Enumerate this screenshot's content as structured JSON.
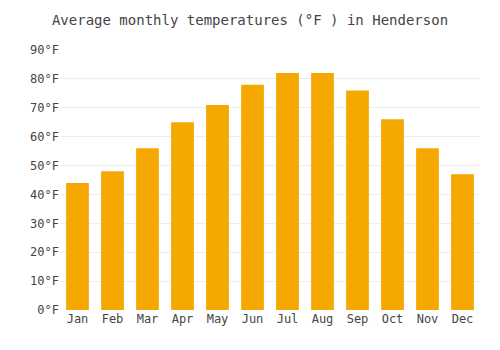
{
  "chart_data": {
    "type": "bar",
    "title": "Average monthly temperatures (°F ) in Henderson",
    "categories": [
      "Jan",
      "Feb",
      "Mar",
      "Apr",
      "May",
      "Jun",
      "Jul",
      "Aug",
      "Sep",
      "Oct",
      "Nov",
      "Dec"
    ],
    "values": [
      44,
      48,
      56,
      65,
      71,
      78,
      82,
      82,
      76,
      66,
      56,
      47
    ],
    "color": "#F5A800",
    "ylim": [
      0,
      90
    ],
    "yticks": [
      {
        "value": 0,
        "label": "0°F"
      },
      {
        "value": 10,
        "label": "10°F"
      },
      {
        "value": 20,
        "label": "20°F"
      },
      {
        "value": 30,
        "label": "30°F"
      },
      {
        "value": 40,
        "label": "40°F"
      },
      {
        "value": 50,
        "label": "50°F"
      },
      {
        "value": 60,
        "label": "60°F"
      },
      {
        "value": 70,
        "label": "70°F"
      },
      {
        "value": 80,
        "label": "80°F"
      },
      {
        "value": 90,
        "label": "90°F"
      }
    ],
    "grid": true
  }
}
